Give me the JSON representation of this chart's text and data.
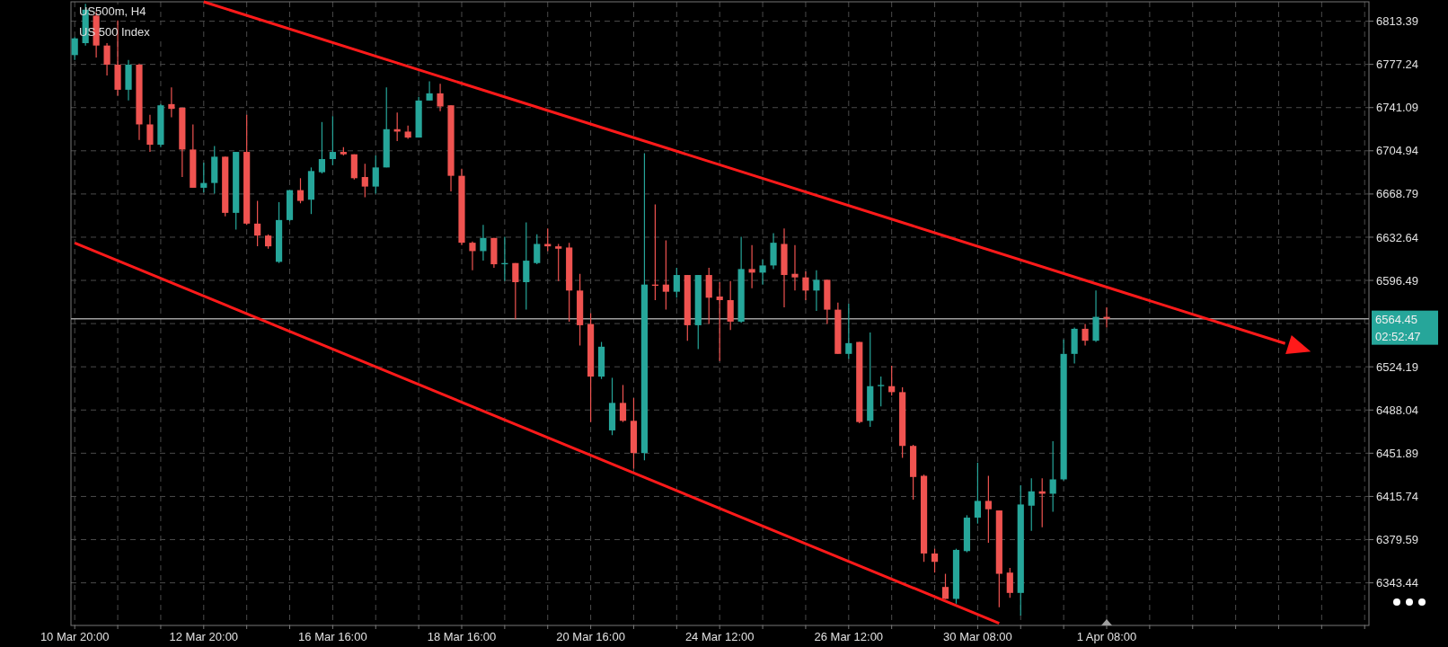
{
  "chart_data": {
    "type": "candlestick",
    "title": "US500m, H4",
    "subtitle": "US 500 Index",
    "categories": [
      "10 Mar 20:00",
      null,
      null,
      null,
      null,
      null,
      null,
      null,
      null,
      null,
      null,
      null,
      "12 Mar 20:00",
      null,
      null,
      null,
      null,
      null,
      null,
      null,
      null,
      null,
      null,
      null,
      "16 Mar 16:00",
      null,
      null,
      null,
      null,
      null,
      null,
      null,
      null,
      null,
      null,
      null,
      "18 Mar 16:00",
      null,
      null,
      null,
      null,
      null,
      null,
      null,
      null,
      null,
      null,
      null,
      "20 Mar 16:00",
      null,
      null,
      null,
      null,
      null,
      null,
      null,
      null,
      null,
      null,
      null,
      "24 Mar 12:00",
      null,
      null,
      null,
      null,
      null,
      null,
      null,
      null,
      null,
      null,
      null,
      "26 Mar 12:00",
      null,
      null,
      null,
      null,
      null,
      null,
      null,
      null,
      null,
      null,
      null,
      "30 Mar 08:00",
      null,
      null,
      null,
      null,
      null,
      null,
      null,
      null,
      null,
      null,
      null,
      "1 Apr 08:00",
      null,
      null,
      null,
      null,
      null,
      null,
      null,
      null,
      null,
      null,
      null,
      null,
      null,
      null,
      null,
      null,
      null,
      null,
      null,
      null,
      null,
      null,
      null,
      null
    ],
    "ohlc": [
      [
        6785,
        6800,
        6781,
        6799
      ],
      [
        6795,
        6828,
        6793,
        6823
      ],
      [
        6818,
        6821,
        6783,
        6793
      ],
      [
        6793,
        6795,
        6768,
        6777
      ],
      [
        6777,
        6814,
        6751,
        6756
      ],
      [
        6756,
        6781,
        6747,
        6777
      ],
      [
        6777,
        6778,
        6714,
        6727
      ],
      [
        6727,
        6735,
        6704,
        6710
      ],
      [
        6710,
        6744,
        6708,
        6743
      ],
      [
        6744,
        6758,
        6733,
        6740
      ],
      [
        6741,
        6741,
        6683,
        6706
      ],
      [
        6706,
        6727,
        6674,
        6674
      ],
      [
        6674,
        6695,
        6670,
        6678
      ],
      [
        6678,
        6709,
        6669,
        6700
      ],
      [
        6700,
        6700,
        6650,
        6653
      ],
      [
        6653,
        6704,
        6639,
        6704
      ],
      [
        6704,
        6735,
        6643,
        6644
      ],
      [
        6644,
        6663,
        6625,
        6634
      ],
      [
        6634,
        6635,
        6623,
        6625
      ],
      [
        6612,
        6662,
        6611,
        6647
      ],
      [
        6647,
        6672,
        6646,
        6672
      ],
      [
        6672,
        6682,
        6661,
        6663
      ],
      [
        6664,
        6691,
        6652,
        6688
      ],
      [
        6687,
        6729,
        6686,
        6698
      ],
      [
        6698,
        6734,
        6693,
        6704
      ],
      [
        6704,
        6708,
        6701,
        6702
      ],
      [
        6702,
        6702,
        6681,
        6682
      ],
      [
        6683,
        6694,
        6666,
        6675
      ],
      [
        6675,
        6701,
        6669,
        6691
      ],
      [
        6691,
        6758,
        6691,
        6723
      ],
      [
        6723,
        6737,
        6713,
        6721
      ],
      [
        6721,
        6726,
        6715,
        6716
      ],
      [
        6716,
        6750,
        6716,
        6747
      ],
      [
        6747,
        6763,
        6747,
        6753
      ],
      [
        6753,
        6761,
        6738,
        6742
      ],
      [
        6743,
        6743,
        6671,
        6684
      ],
      [
        6684,
        6690,
        6626,
        6628
      ],
      [
        6628,
        6629,
        6605,
        6621
      ],
      [
        6621,
        6643,
        6613,
        6632
      ],
      [
        6632,
        6632,
        6607,
        6610
      ],
      [
        6610,
        6633,
        6596,
        6611
      ],
      [
        6611,
        6611,
        6564,
        6595
      ],
      [
        6595,
        6645,
        6572,
        6613
      ],
      [
        6611,
        6635,
        6610,
        6627
      ],
      [
        6627,
        6640,
        6621,
        6625
      ],
      [
        6625,
        6627,
        6596,
        6623
      ],
      [
        6624,
        6628,
        6562,
        6588
      ],
      [
        6588,
        6602,
        6542,
        6559
      ],
      [
        6560,
        6569,
        6478,
        6516
      ],
      [
        6516,
        6545,
        6514,
        6541
      ],
      [
        6471,
        6515,
        6467,
        6494
      ],
      [
        6494,
        6509,
        6478,
        6479
      ],
      [
        6479,
        6498,
        6439,
        6452
      ],
      [
        6452,
        6703,
        6446,
        6593
      ],
      [
        6593,
        6660,
        6580,
        6592
      ],
      [
        6593,
        6630,
        6572,
        6587
      ],
      [
        6587,
        6607,
        6582,
        6601
      ],
      [
        6601,
        6601,
        6546,
        6559
      ],
      [
        6559,
        6601,
        6539,
        6601
      ],
      [
        6601,
        6607,
        6560,
        6582
      ],
      [
        6583,
        6595,
        6529,
        6580
      ],
      [
        6580,
        6596,
        6555,
        6562
      ],
      [
        6562,
        6633,
        6561,
        6606
      ],
      [
        6606,
        6626,
        6590,
        6603
      ],
      [
        6603,
        6614,
        6593,
        6609
      ],
      [
        6609,
        6636,
        6606,
        6628
      ],
      [
        6627,
        6640,
        6574,
        6601
      ],
      [
        6602,
        6626,
        6588,
        6599
      ],
      [
        6599,
        6604,
        6580,
        6588
      ],
      [
        6588,
        6605,
        6571,
        6597
      ],
      [
        6597,
        6597,
        6560,
        6572
      ],
      [
        6572,
        6578,
        6535,
        6535
      ],
      [
        6535,
        6577,
        6531,
        6544
      ],
      [
        6545,
        6545,
        6477,
        6478
      ],
      [
        6479,
        6553,
        6474,
        6508
      ],
      [
        6508,
        6516,
        6491,
        6509
      ],
      [
        6508,
        6525,
        6500,
        6503
      ],
      [
        6503,
        6507,
        6448,
        6458
      ],
      [
        6458,
        6459,
        6413,
        6432
      ],
      [
        6433,
        6434,
        6361,
        6368
      ],
      [
        6368,
        6372,
        6352,
        6361
      ],
      [
        6340,
        6351,
        6330,
        6330
      ],
      [
        6330,
        6372,
        6326,
        6371
      ],
      [
        6370,
        6400,
        6369,
        6398
      ],
      [
        6398,
        6444,
        6393,
        6412
      ],
      [
        6412,
        6433,
        6377,
        6405
      ],
      [
        6404,
        6404,
        6323,
        6351
      ],
      [
        6352,
        6356,
        6331,
        6335
      ],
      [
        6335,
        6425,
        6316,
        6409
      ],
      [
        6408,
        6431,
        6387,
        6420
      ],
      [
        6420,
        6431,
        6390,
        6418
      ],
      [
        6418,
        6462,
        6403,
        6430
      ],
      [
        6430,
        6547,
        6429,
        6535
      ],
      [
        6535,
        6557,
        6527,
        6556
      ],
      [
        6556,
        6560,
        6542,
        6546
      ],
      [
        6546,
        6588,
        6545,
        6566
      ],
      [
        6566,
        6574,
        6557,
        6564.45
      ],
      null,
      null,
      null,
      null,
      null,
      null,
      null,
      null,
      null,
      null,
      null,
      null,
      null,
      null,
      null,
      null,
      null,
      null,
      null,
      null,
      null,
      null,
      null,
      null
    ],
    "colors": [
      "#26a69a",
      "#26a69a",
      "#ef5350",
      "#ef5350",
      "#ef5350",
      "#26a69a",
      "#ef5350",
      "#ef5350",
      "#26a69a",
      "#ef5350",
      "#ef5350",
      "#ef5350",
      "#26a69a",
      "#26a69a",
      "#ef5350",
      "#26a69a",
      "#ef5350",
      "#ef5350",
      "#ef5350",
      "#26a69a",
      "#26a69a",
      "#ef5350",
      "#26a69a",
      "#26a69a",
      "#26a69a",
      "#ef5350",
      "#ef5350",
      "#ef5350",
      "#26a69a",
      "#26a69a",
      "#ef5350",
      "#ef5350",
      "#26a69a",
      "#26a69a",
      "#ef5350",
      "#ef5350",
      "#ef5350",
      "#ef5350",
      "#26a69a",
      "#ef5350",
      "#26a69a",
      "#ef5350",
      "#26a69a",
      "#26a69a",
      "#ef5350",
      "#ef5350",
      "#ef5350",
      "#ef5350",
      "#ef5350",
      "#26a69a",
      "#26a69a",
      "#ef5350",
      "#ef5350",
      "#26a69a",
      "#ef5350",
      "#ef5350",
      "#26a69a",
      "#ef5350",
      "#26a69a",
      "#ef5350",
      "#ef5350",
      "#ef5350",
      "#26a69a",
      "#ef5350",
      "#26a69a",
      "#26a69a",
      "#ef5350",
      "#ef5350",
      "#ef5350",
      "#26a69a",
      "#ef5350",
      "#ef5350",
      "#26a69a",
      "#ef5350",
      "#26a69a",
      "#26a69a",
      "#ef5350",
      "#ef5350",
      "#ef5350",
      "#ef5350",
      "#ef5350",
      "#ef5350",
      "#26a69a",
      "#26a69a",
      "#26a69a",
      "#ef5350",
      "#ef5350",
      "#ef5350",
      "#26a69a",
      "#26a69a",
      "#ef5350",
      "#26a69a",
      "#26a69a",
      "#26a69a",
      "#ef5350",
      "#26a69a",
      "#ef5350",
      null,
      null,
      null,
      null,
      null,
      null,
      null,
      null,
      null,
      null,
      null,
      null,
      null,
      null,
      null,
      null,
      null,
      null,
      null,
      null,
      null,
      null,
      null,
      null
    ],
    "series": [
      {
        "type": "line",
        "values": [
          6627.8,
          null,
          null,
          null,
          null,
          null,
          null,
          null,
          null,
          null,
          null,
          null,
          null,
          null,
          null,
          null,
          null,
          null,
          null,
          null,
          null,
          null,
          null,
          null,
          null,
          null,
          null,
          null,
          null,
          null,
          null,
          null,
          null,
          null,
          null,
          null,
          null,
          null,
          null,
          null,
          null,
          null,
          null,
          null,
          null,
          null,
          null,
          null,
          null,
          null,
          null,
          null,
          null,
          null,
          null,
          null,
          null,
          null,
          null,
          null,
          null,
          null,
          null,
          null,
          null,
          null,
          null,
          null,
          null,
          null,
          null,
          null,
          null,
          null,
          null,
          null,
          null,
          null,
          null,
          null,
          null,
          null,
          null,
          null,
          null,
          null,
          6309.6,
          null,
          null,
          null,
          null,
          null,
          null,
          null,
          null,
          null,
          null,
          null,
          null,
          null,
          null,
          null,
          null,
          null,
          null,
          null,
          null,
          null,
          null,
          null,
          null,
          null,
          null,
          null,
          null,
          null,
          null,
          null,
          null,
          null,
          null
        ],
        "color": "#ff1a1a"
      }
    ],
    "ref_lines": [
      {
        "axis": "y",
        "value": 6564.45,
        "label": "6564.45",
        "color": "#9e9e9e"
      }
    ],
    "annotations": [
      "02:52:47"
    ],
    "ylim": [
      6307.8,
      6829.6
    ],
    "yticks": [
      6343.44,
      6379.59,
      6415.74,
      6451.89,
      6488.04,
      6524.19,
      {
        "value": 6560.34,
        "label": null
      },
      6596.49,
      6632.64,
      6668.79,
      6704.94,
      6741.09,
      6777.24,
      6813.39
    ],
    "grid": true
  }
}
